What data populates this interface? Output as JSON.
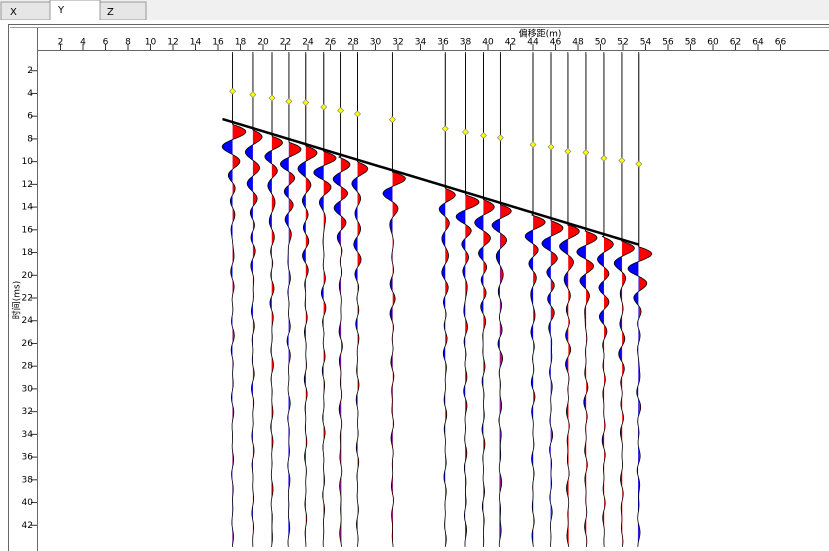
{
  "tabs": [
    "X",
    "Y",
    "Z"
  ],
  "active_tab": 1,
  "chart_data": {
    "type": "seismic-wiggle",
    "x_label": "偏移距(m)",
    "y_label": "时间(ms)",
    "xlim": [
      0,
      70
    ],
    "ylim": [
      0,
      44
    ],
    "xticks": [
      2,
      4,
      6,
      8,
      10,
      12,
      14,
      16,
      18,
      20,
      22,
      24,
      26,
      28,
      30,
      32,
      34,
      36,
      38,
      40,
      42,
      44,
      46,
      48,
      50,
      52,
      54,
      56,
      58,
      60,
      62,
      64,
      66
    ],
    "yticks": [
      2,
      4,
      6,
      8,
      10,
      12,
      14,
      16,
      18,
      20,
      22,
      24,
      26,
      28,
      30,
      32,
      34,
      36,
      38,
      40,
      42
    ],
    "positive_color": "#ff0000",
    "negative_color": "#0000ff",
    "pick_color": "#ffff00",
    "traces": [
      {
        "x": 17.3,
        "pick": 3.8
      },
      {
        "x": 19.1,
        "pick": 4.1
      },
      {
        "x": 20.8,
        "pick": 4.4
      },
      {
        "x": 22.3,
        "pick": 4.7
      },
      {
        "x": 23.8,
        "pick": 4.8
      },
      {
        "x": 25.4,
        "pick": 5.2
      },
      {
        "x": 26.9,
        "pick": 5.5
      },
      {
        "x": 28.4,
        "pick": 5.8
      },
      {
        "x": 31.5,
        "pick": 6.3
      },
      {
        "x": 36.2,
        "pick": 7.1
      },
      {
        "x": 38.0,
        "pick": 7.4
      },
      {
        "x": 39.6,
        "pick": 7.7
      },
      {
        "x": 41.1,
        "pick": 7.9
      },
      {
        "x": 44.0,
        "pick": 8.5
      },
      {
        "x": 45.6,
        "pick": 8.7
      },
      {
        "x": 47.1,
        "pick": 9.1
      },
      {
        "x": 48.7,
        "pick": 9.2
      },
      {
        "x": 50.3,
        "pick": 9.7
      },
      {
        "x": 51.9,
        "pick": 9.9
      },
      {
        "x": 53.4,
        "pick": 10.2
      }
    ],
    "pick_line": {
      "x": [
        16.4,
        53.4
      ],
      "y": [
        6.25,
        17.3
      ]
    }
  }
}
